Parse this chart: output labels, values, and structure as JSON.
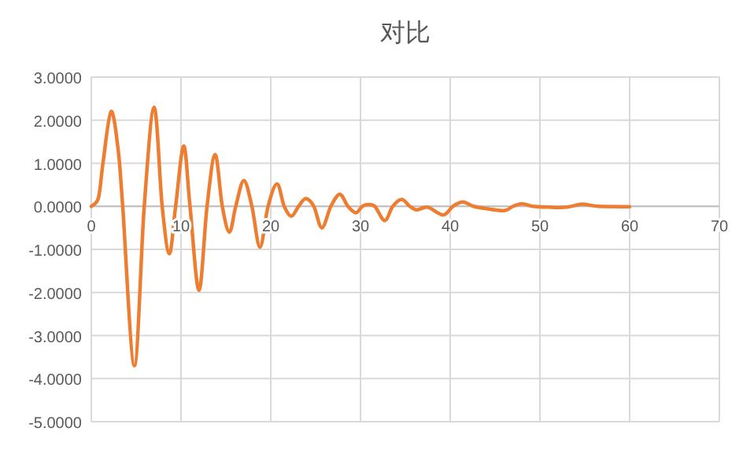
{
  "chart_data": {
    "type": "line",
    "title": "对比",
    "x": [
      0,
      0.8,
      1.3,
      2.2,
      3.0,
      3.5,
      4.8,
      5.9,
      7.0,
      7.9,
      8.7,
      9.4,
      10.3,
      11.0,
      12.0,
      12.9,
      13.8,
      14.6,
      15.4,
      16.1,
      17.0,
      17.9,
      18.8,
      19.7,
      20.7,
      21.5,
      22.3,
      23.1,
      23.9,
      24.8,
      25.7,
      26.7,
      27.7,
      28.6,
      29.5,
      30.2,
      30.8,
      31.6,
      32.7,
      33.6,
      34.6,
      35.5,
      36.3,
      37.5,
      39.2,
      40.3,
      41.4,
      42.6,
      43.9,
      46,
      47,
      48,
      49.2,
      51,
      53,
      54.7,
      56.5,
      60
    ],
    "series": [
      {
        "color": "#ed7d31",
        "values": [
          0,
          0.2,
          1.0,
          2.2,
          1.3,
          0,
          -3.7,
          0,
          2.3,
          0,
          -1.1,
          0,
          1.4,
          0,
          -1.95,
          0,
          1.2,
          0,
          -0.6,
          0,
          0.6,
          0,
          -0.95,
          0,
          0.52,
          0,
          -0.23,
          0,
          0.18,
          0,
          -0.5,
          0,
          0.28,
          0,
          -0.15,
          0,
          0.04,
          0,
          -0.33,
          0,
          0.16,
          0,
          -0.08,
          -0.02,
          -0.2,
          0,
          0.1,
          0,
          -0.05,
          -0.1,
          0,
          0.06,
          0,
          -0.02,
          -0.02,
          0.05,
          0,
          -0.01
        ]
      }
    ],
    "xlim": [
      0,
      70
    ],
    "xticks": [
      0,
      10,
      20,
      30,
      40,
      50,
      60,
      70
    ],
    "ylim": [
      -5,
      3
    ],
    "yticks": [
      {
        "value": 3,
        "label": "3.0000"
      },
      {
        "value": 2,
        "label": "2.0000"
      },
      {
        "value": 1,
        "label": "1.0000"
      },
      {
        "value": 0,
        "label": "0.0000"
      },
      {
        "value": -1,
        "label": "-1.0000"
      },
      {
        "value": -2,
        "label": "-2.0000"
      },
      {
        "value": -3,
        "label": "-3.0000"
      },
      {
        "value": -4,
        "label": "-4.0000"
      },
      {
        "value": -5,
        "label": "-5.0000"
      }
    ],
    "grid": true
  }
}
